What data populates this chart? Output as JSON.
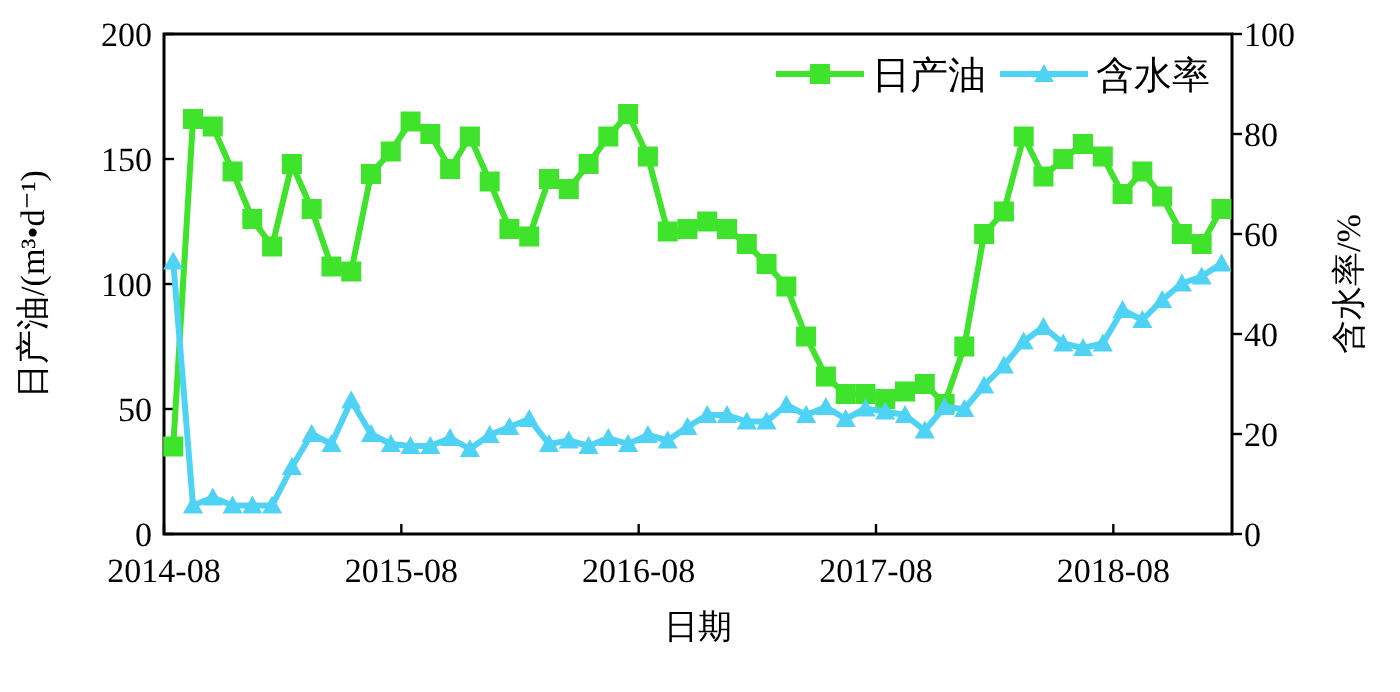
{
  "chart_data": {
    "type": "line",
    "xlabel": "日期",
    "ylabel": "日产油/(m³•d⁻¹)",
    "y2label": "含水率/%",
    "x": [
      "2014-08-15",
      "2014-09-15",
      "2014-10-15",
      "2014-11-15",
      "2014-12-15",
      "2015-01-15",
      "2015-02-15",
      "2015-03-15",
      "2015-04-15",
      "2015-05-15",
      "2015-06-15",
      "2015-07-15",
      "2015-08-15",
      "2015-09-15",
      "2015-10-15",
      "2015-11-15",
      "2015-12-15",
      "2016-01-15",
      "2016-02-15",
      "2016-03-15",
      "2016-04-15",
      "2016-05-15",
      "2016-06-15",
      "2016-07-15",
      "2016-08-15",
      "2016-09-15",
      "2016-10-15",
      "2016-11-15",
      "2016-12-15",
      "2017-01-15",
      "2017-02-15",
      "2017-03-15",
      "2017-04-15",
      "2017-05-15",
      "2017-06-15",
      "2017-07-15",
      "2017-08-15",
      "2017-09-15",
      "2017-10-15",
      "2017-11-15",
      "2017-12-15",
      "2018-01-15",
      "2018-02-15",
      "2018-03-15",
      "2018-04-15",
      "2018-05-15",
      "2018-06-15",
      "2018-07-15",
      "2018-08-15",
      "2018-09-15",
      "2018-10-15",
      "2018-11-15",
      "2018-12-15",
      "2019-01-15"
    ],
    "series": [
      {
        "name": "日产油",
        "color": "#3fe32b",
        "marker": "square",
        "values": [
          35,
          166,
          163,
          145,
          126,
          115,
          148,
          130,
          107,
          105,
          144,
          153,
          165,
          160,
          146,
          159,
          141,
          122,
          119,
          142,
          138,
          148,
          159,
          168,
          151,
          121,
          122,
          125,
          122,
          116,
          108,
          99,
          79,
          63,
          56,
          56,
          54,
          57,
          60,
          52,
          75,
          120,
          129,
          159,
          143,
          150,
          156,
          151,
          136,
          145,
          135,
          120,
          116,
          130
        ]
      },
      {
        "name": "含水率",
        "color": "#4fd3f5",
        "marker": "triangle",
        "axis": "y2",
        "values": [
          54.5,
          5.7,
          7.3,
          5.7,
          5.7,
          5.7,
          13.4,
          20,
          18,
          26.7,
          20,
          18,
          17.6,
          17.6,
          19.2,
          17,
          19.8,
          21.4,
          23,
          18,
          18.7,
          17.6,
          19.2,
          18,
          19.8,
          18.7,
          21.4,
          23.8,
          23.8,
          22.5,
          22.5,
          25.8,
          23.8,
          25.4,
          23,
          25.1,
          24.5,
          23.8,
          20.7,
          25.4,
          25,
          29.7,
          33.7,
          38.5,
          41.4,
          38.1,
          37.2,
          38.1,
          44.8,
          42.8,
          46.8,
          50.1,
          51.5,
          54.1
        ]
      }
    ],
    "xlim": [
      "2014-08",
      "2019-02"
    ],
    "xticks": [
      "2014-08",
      "2015-08",
      "2016-08",
      "2017-08",
      "2018-08"
    ],
    "ylim": [
      0,
      200
    ],
    "yticks": [
      0,
      50,
      100,
      150,
      200
    ],
    "y2lim": [
      0,
      100
    ],
    "y2ticks": [
      0,
      20,
      40,
      60,
      80,
      100
    ],
    "legend": "top right",
    "grid": false
  }
}
